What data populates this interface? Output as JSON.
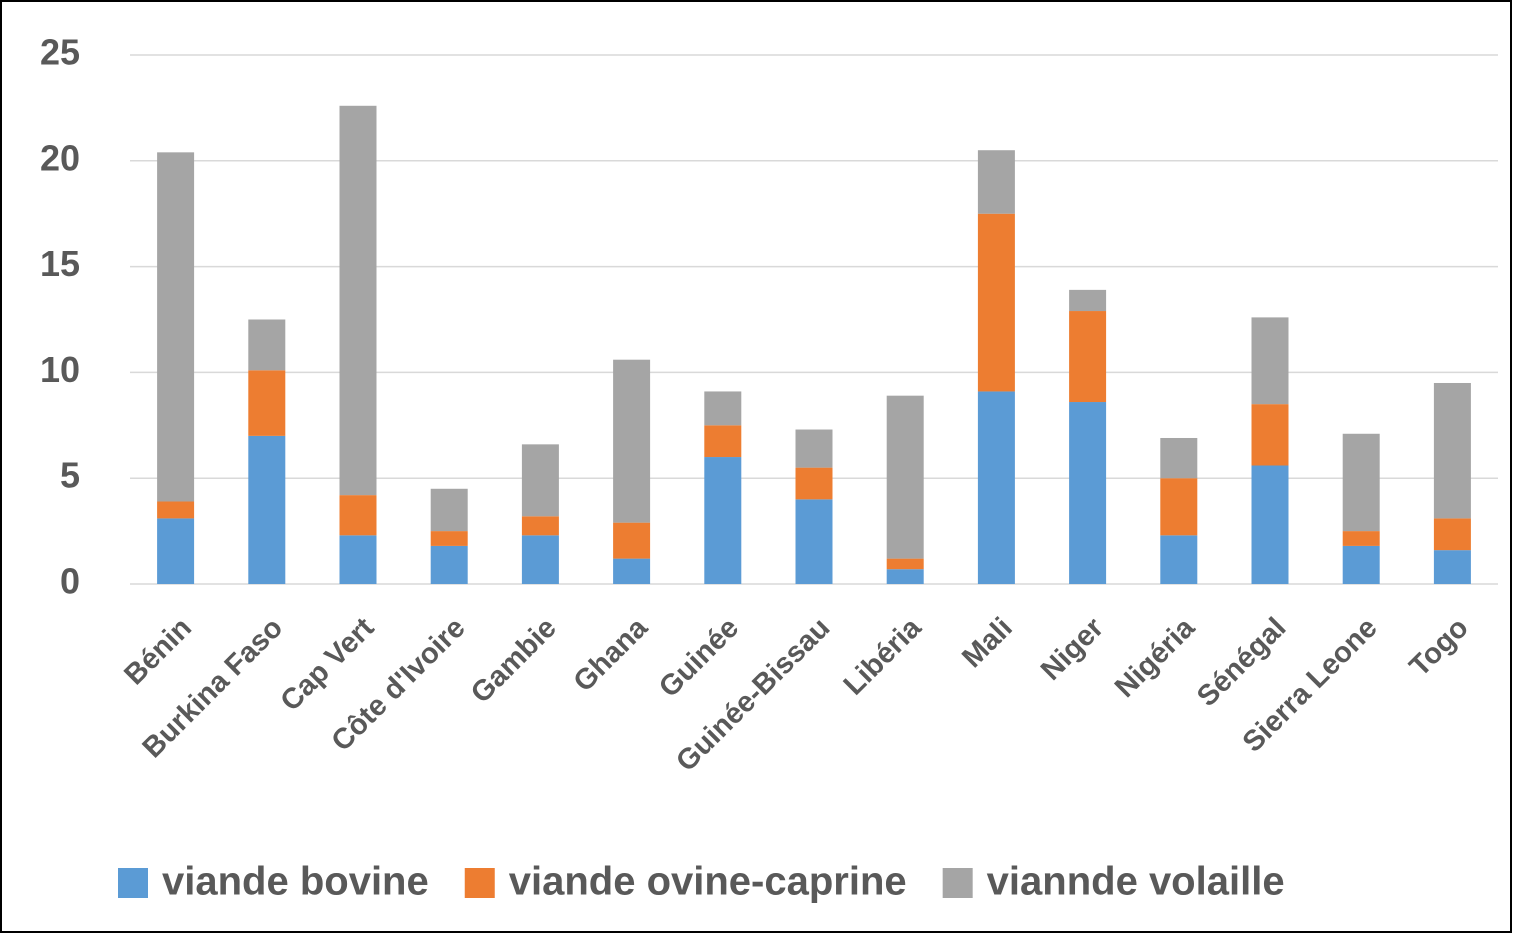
{
  "chart_data": {
    "type": "bar",
    "stacked": true,
    "categories": [
      "Bénin",
      "Burkina Faso",
      "Cap Vert",
      "Côte d'Ivoire",
      "Gambie",
      "Ghana",
      "Guinée",
      "Guinée-Bissau",
      "Libéria",
      "Mali",
      "Niger",
      "Nigéria",
      "Sénégal",
      "Sierra Leone",
      "Togo"
    ],
    "series": [
      {
        "name": "viande bovine",
        "color": "#5b9bd5",
        "values": [
          3.1,
          7.0,
          2.3,
          1.8,
          2.3,
          1.2,
          6.0,
          4.0,
          0.7,
          9.1,
          8.6,
          2.3,
          5.6,
          1.8,
          1.6
        ]
      },
      {
        "name": "viande ovine-caprine",
        "color": "#ed7d31",
        "values": [
          0.8,
          3.1,
          1.9,
          0.7,
          0.9,
          1.7,
          1.5,
          1.5,
          0.5,
          8.4,
          4.3,
          2.7,
          2.9,
          0.7,
          1.5
        ]
      },
      {
        "name": "viannde volaille",
        "color": "#a5a5a5",
        "values": [
          16.5,
          2.4,
          18.4,
          2.0,
          3.4,
          7.7,
          1.6,
          1.8,
          7.7,
          3.0,
          1.0,
          1.9,
          4.1,
          4.6,
          6.4
        ]
      }
    ],
    "ylim": [
      0,
      25
    ],
    "yticks": [
      0,
      5,
      10,
      15,
      20,
      25
    ],
    "grid": true,
    "legend": "bottom"
  }
}
